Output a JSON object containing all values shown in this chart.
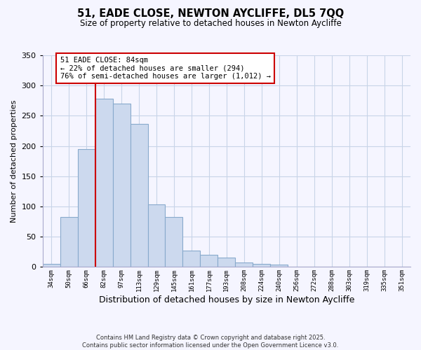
{
  "title": "51, EADE CLOSE, NEWTON AYCLIFFE, DL5 7QQ",
  "subtitle": "Size of property relative to detached houses in Newton Aycliffe",
  "xlabel": "Distribution of detached houses by size in Newton Aycliffe",
  "ylabel": "Number of detached properties",
  "bar_color": "#ccd9ee",
  "bar_edge_color": "#88aacc",
  "categories": [
    "34sqm",
    "50sqm",
    "66sqm",
    "82sqm",
    "97sqm",
    "113sqm",
    "129sqm",
    "145sqm",
    "161sqm",
    "177sqm",
    "193sqm",
    "208sqm",
    "224sqm",
    "240sqm",
    "256sqm",
    "272sqm",
    "288sqm",
    "303sqm",
    "319sqm",
    "335sqm",
    "351sqm"
  ],
  "values": [
    5,
    83,
    195,
    278,
    270,
    237,
    103,
    83,
    27,
    20,
    16,
    7,
    5,
    4,
    0,
    0,
    0,
    1,
    0,
    1,
    0
  ],
  "ylim": [
    0,
    350
  ],
  "yticks": [
    0,
    50,
    100,
    150,
    200,
    250,
    300,
    350
  ],
  "vline_index": 3,
  "marker_label": "51 EADE CLOSE: 84sqm",
  "annotation_line1": "← 22% of detached houses are smaller (294)",
  "annotation_line2": "76% of semi-detached houses are larger (1,012) →",
  "vline_color": "#cc0000",
  "annotation_box_color": "#ffffff",
  "annotation_box_edge": "#cc0000",
  "footer_line1": "Contains HM Land Registry data © Crown copyright and database right 2025.",
  "footer_line2": "Contains public sector information licensed under the Open Government Licence v3.0.",
  "bg_color": "#f5f5ff",
  "grid_color": "#c8d4e8"
}
